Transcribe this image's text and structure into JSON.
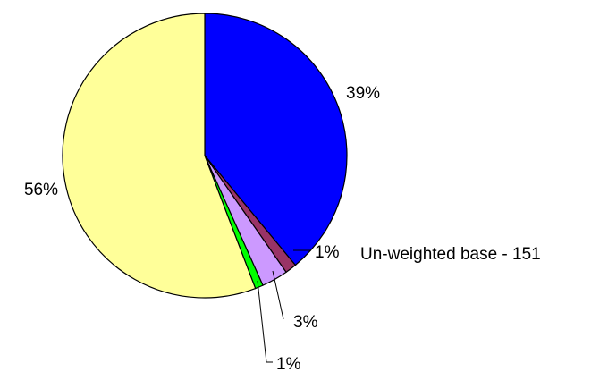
{
  "chart_data": {
    "type": "pie",
    "slices": [
      {
        "label": "39%",
        "value": 39,
        "color": "#0000FF"
      },
      {
        "label": "1%",
        "value": 1.3,
        "color": "#993366"
      },
      {
        "label": "3%",
        "value": 3,
        "color": "#CC99FF"
      },
      {
        "label": "1%",
        "value": 0.9,
        "color": "#00FF00"
      },
      {
        "label": "56%",
        "value": 55.8,
        "color": "#FFFF99"
      }
    ],
    "note": "Un-weighted base - 151"
  }
}
